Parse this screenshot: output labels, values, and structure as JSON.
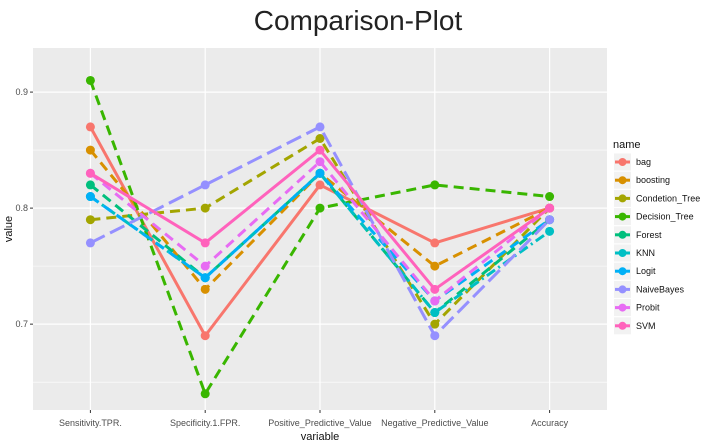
{
  "chart_data": {
    "type": "line",
    "title": "Comparison-Plot",
    "xlabel": "variable",
    "ylabel": "value",
    "categories": [
      "Sensitivity.TPR.",
      "Specificity.1.FPR.",
      "Positive_Predictive_Value",
      "Negative_Predictive_Value",
      "Accuracy"
    ],
    "ylim": [
      0.626,
      0.938
    ],
    "yticks": [
      0.7,
      0.8,
      0.9
    ],
    "ytick_labels": [
      "0.7",
      "0.8",
      "0.9"
    ],
    "grid": true,
    "legend_title": "name",
    "legend_position": "right",
    "series": [
      {
        "name": "bag",
        "color": "#F8766D",
        "dash": "solid",
        "values": [
          0.87,
          0.69,
          0.82,
          0.77,
          0.8
        ]
      },
      {
        "name": "boosting",
        "color": "#D89000",
        "dash": "dashed",
        "values": [
          0.85,
          0.73,
          0.83,
          0.75,
          0.8
        ]
      },
      {
        "name": "Condetion_Tree",
        "color": "#A3A500",
        "dash": "dashed",
        "values": [
          0.79,
          0.8,
          0.86,
          0.7,
          0.8
        ]
      },
      {
        "name": "Decision_Tree",
        "color": "#39B600",
        "dash": "dashed",
        "values": [
          0.91,
          0.64,
          0.8,
          0.82,
          0.81
        ]
      },
      {
        "name": "Forest",
        "color": "#00BF7D",
        "dash": "dashed",
        "values": [
          0.82,
          0.74,
          0.83,
          0.71,
          0.79
        ]
      },
      {
        "name": "KNN",
        "color": "#00BFC4",
        "dash": "dashdot",
        "values": [
          0.81,
          0.74,
          0.83,
          0.71,
          0.78
        ]
      },
      {
        "name": "Logit",
        "color": "#00B0F6",
        "dash": "dashed",
        "values": [
          0.81,
          0.74,
          0.83,
          0.72,
          0.79
        ]
      },
      {
        "name": "NaiveBayes",
        "color": "#9590FF",
        "dash": "longdash",
        "values": [
          0.77,
          0.82,
          0.87,
          0.69,
          0.79
        ]
      },
      {
        "name": "Probit",
        "color": "#E76BF3",
        "dash": "dashed",
        "values": [
          0.83,
          0.75,
          0.84,
          0.72,
          0.8
        ]
      },
      {
        "name": "SVM",
        "color": "#FF62BC",
        "dash": "solid",
        "values": [
          0.83,
          0.77,
          0.85,
          0.73,
          0.8
        ]
      }
    ]
  }
}
